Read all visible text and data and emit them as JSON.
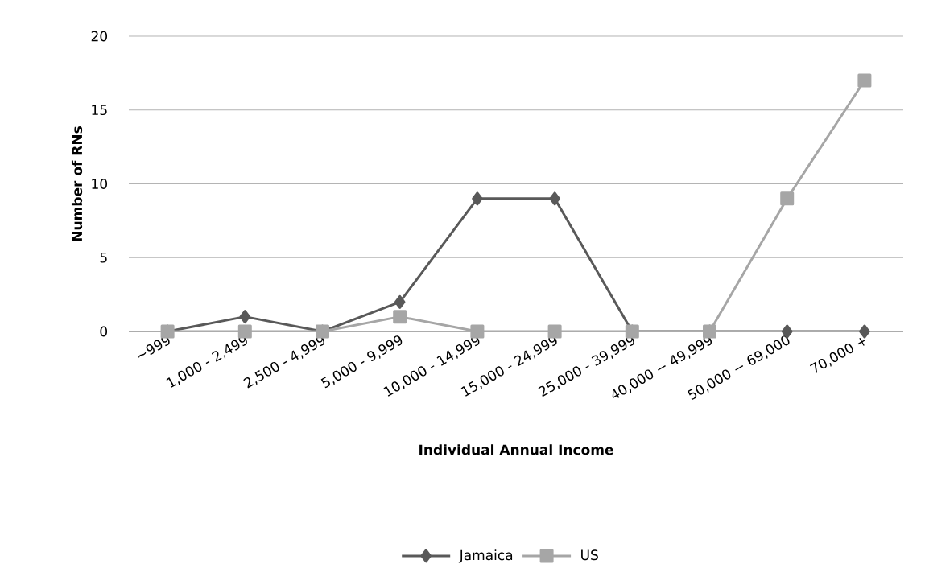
{
  "chart_data": {
    "type": "line",
    "xlabel": "Individual Annual Income",
    "ylabel": "Number of RNs",
    "categories": [
      "~999",
      "1,000 - 2,499",
      "2,500 - 4,999",
      "5,000 -  9,999",
      "10,000 - 14,999",
      "15,000 - 24,999",
      "25,000 - 39,999",
      "40,000 − 49,999",
      "50,000 − 69,000",
      "70,000 +"
    ],
    "series": [
      {
        "name": "Jamaica",
        "color": "#595959",
        "marker": "diamond",
        "values": [
          0,
          1,
          0,
          2,
          9,
          9,
          0,
          0,
          0,
          0
        ]
      },
      {
        "name": "US",
        "color": "#a6a6a6",
        "marker": "square",
        "values": [
          0,
          0,
          0,
          1,
          0,
          0,
          0,
          0,
          9,
          17
        ]
      }
    ],
    "ylim": [
      0,
      20
    ],
    "yticks": [
      0,
      5,
      10,
      15,
      20
    ],
    "grid": "y",
    "legend": "bottom",
    "line_style": "solid"
  }
}
